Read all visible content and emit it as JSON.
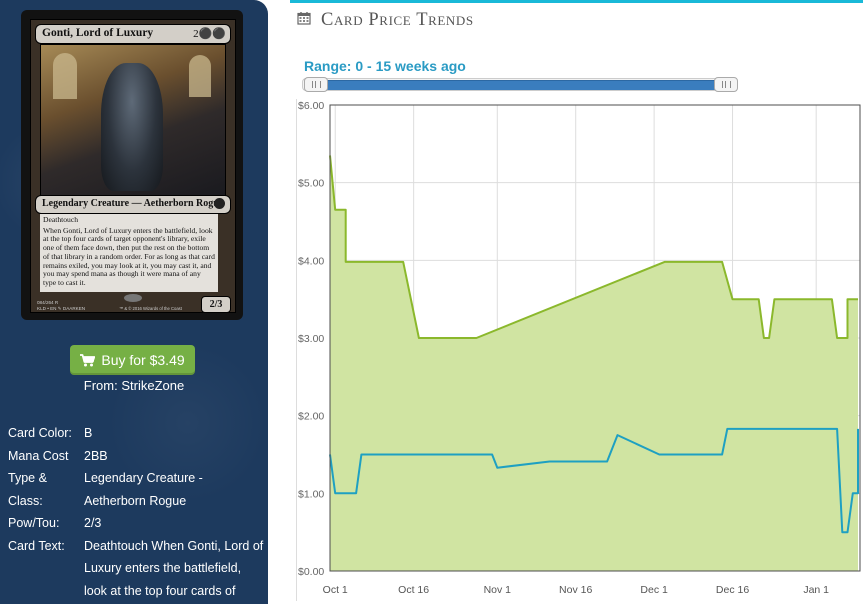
{
  "card": {
    "name": "Gonti, Lord of Luxury",
    "mana_cost": "2⚫⚫",
    "type_line": "Legendary Creature — Aetherborn Rogue",
    "keyword": "Deathtouch",
    "ability": "When Gonti, Lord of Luxury enters the battlefield, look at the top four cards of target opponent's library, exile one of them face down, then put the rest on the bottom of that library in a random order. For as long as that card remains exiled, you may look at it, you may cast it, and you may spend mana as though it were mana of any type to cast it.",
    "power_toughness": "2/3",
    "footer_left": "084/264 R",
    "footer_left2": "KLD • EN ✎ DAARKEN",
    "footer_right": "™ & © 2016 Wizards of the Coast"
  },
  "buy": {
    "label": "Buy for $3.49",
    "from": "From: StrikeZone",
    "accent": "#76b045"
  },
  "details": [
    {
      "label": "Card Color:",
      "value": "B"
    },
    {
      "label": "Mana Cost",
      "value": "2BB"
    },
    {
      "label": "Type & Class:",
      "value": "Legendary Creature - Aetherborn Rogue"
    },
    {
      "label": "Pow/Tou:",
      "value": "2/3"
    },
    {
      "label": "Card Text:",
      "value": "Deathtouch When Gonti, Lord of Luxury enters the battlefield, look at the top four cards of"
    }
  ],
  "panel": {
    "title": "Card Price Trends",
    "calendar_icon": "calendar-icon",
    "range_label": "Range: 0 - 15 weeks ago",
    "accent": "#19b9d8"
  },
  "chart_data": {
    "type": "area",
    "x_axis_type": "date",
    "x_ticks": [
      "Oct 1",
      "Oct 16",
      "Nov 1",
      "Nov 16",
      "Dec 1",
      "Dec 16",
      "Jan 1"
    ],
    "y_ticks": [
      "$0.00",
      "$1.00",
      "$2.00",
      "$3.00",
      "$4.00",
      "$5.00",
      "$6.00"
    ],
    "ylim": [
      0,
      6
    ],
    "grid": true,
    "series": [
      {
        "color": "#8bb82c",
        "fill": "#d0e4a2",
        "points": [
          [
            "2016-09-30",
            5.35
          ],
          [
            "2016-10-01",
            4.65
          ],
          [
            "2016-10-03",
            4.65
          ],
          [
            "2016-10-03",
            3.98
          ],
          [
            "2016-10-14",
            3.98
          ],
          [
            "2016-10-17",
            3.0
          ],
          [
            "2016-10-28",
            3.0
          ],
          [
            "2016-12-03",
            3.98
          ],
          [
            "2016-12-14",
            3.98
          ],
          [
            "2016-12-16",
            3.5
          ],
          [
            "2016-12-21",
            3.5
          ],
          [
            "2016-12-22",
            3.0
          ],
          [
            "2016-12-23",
            3.0
          ],
          [
            "2016-12-24",
            3.5
          ],
          [
            "2017-01-04",
            3.5
          ],
          [
            "2017-01-05",
            3.0
          ],
          [
            "2017-01-07",
            3.0
          ],
          [
            "2017-01-07",
            3.5
          ],
          [
            "2017-01-09",
            3.5
          ]
        ]
      },
      {
        "color": "#1ea0c2",
        "points": [
          [
            "2016-09-30",
            1.5
          ],
          [
            "2016-10-01",
            1.0
          ],
          [
            "2016-10-05",
            1.0
          ],
          [
            "2016-10-06",
            1.5
          ],
          [
            "2016-10-31",
            1.5
          ],
          [
            "2016-11-01",
            1.33
          ],
          [
            "2016-11-11",
            1.41
          ],
          [
            "2016-11-22",
            1.41
          ],
          [
            "2016-11-24",
            1.75
          ],
          [
            "2016-12-02",
            1.5
          ],
          [
            "2016-12-14",
            1.5
          ],
          [
            "2016-12-15",
            1.83
          ],
          [
            "2017-01-05",
            1.83
          ],
          [
            "2017-01-06",
            0.5
          ],
          [
            "2017-01-07",
            0.5
          ],
          [
            "2017-01-08",
            1.0
          ],
          [
            "2017-01-09",
            1.0
          ],
          [
            "2017-01-09",
            1.83
          ]
        ]
      }
    ]
  }
}
